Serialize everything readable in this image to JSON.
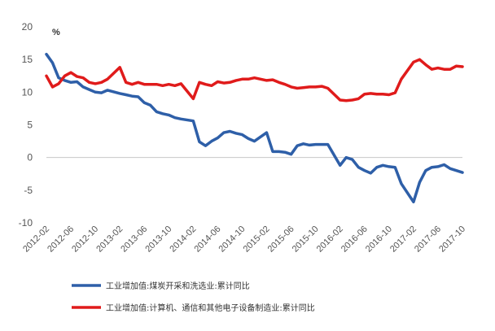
{
  "chart_data": {
    "type": "line",
    "unit_label": "%",
    "ylim": [
      -10,
      20
    ],
    "yticks": [
      20,
      15,
      10,
      5,
      0,
      -5,
      -10
    ],
    "x_tick_labels": [
      "2012-02",
      "2012-06",
      "2012-10",
      "2013-02",
      "2013-06",
      "2013-10",
      "2014-02",
      "2014-06",
      "2014-10",
      "2015-02",
      "2015-06",
      "2015-10",
      "2016-02",
      "2016-06",
      "2016-10",
      "2017-02",
      "2017-06",
      "2017-10"
    ],
    "x": [
      "2012-02",
      "2012-03",
      "2012-04",
      "2012-05",
      "2012-06",
      "2012-07",
      "2012-08",
      "2012-09",
      "2012-10",
      "2012-11",
      "2012-12",
      "2013-02",
      "2013-03",
      "2013-04",
      "2013-05",
      "2013-06",
      "2013-07",
      "2013-08",
      "2013-09",
      "2013-10",
      "2013-11",
      "2013-12",
      "2014-02",
      "2014-03",
      "2014-04",
      "2014-05",
      "2014-06",
      "2014-07",
      "2014-08",
      "2014-09",
      "2014-10",
      "2014-11",
      "2014-12",
      "2015-02",
      "2015-03",
      "2015-04",
      "2015-05",
      "2015-06",
      "2015-07",
      "2015-08",
      "2015-09",
      "2015-10",
      "2015-11",
      "2015-12",
      "2016-02",
      "2016-03",
      "2016-04",
      "2016-05",
      "2016-06",
      "2016-07",
      "2016-08",
      "2016-09",
      "2016-10",
      "2016-11",
      "2016-12",
      "2017-02",
      "2017-03",
      "2017-04",
      "2017-05",
      "2017-06",
      "2017-07",
      "2017-08",
      "2017-09",
      "2017-10"
    ],
    "series": [
      {
        "name": "工业增加值:煤炭开采和洗选业:累计同比",
        "color": "#2e5fa8",
        "values": [
          15.8,
          14.5,
          12.2,
          11.8,
          11.5,
          11.6,
          10.8,
          10.4,
          10.0,
          9.9,
          10.3,
          9.8,
          9.6,
          9.4,
          9.3,
          8.4,
          8.0,
          7.0,
          6.7,
          6.5,
          6.1,
          5.9,
          5.6,
          2.4,
          1.8,
          2.5,
          3.0,
          3.8,
          4.0,
          3.7,
          3.5,
          2.9,
          2.5,
          3.8,
          0.9,
          0.9,
          0.8,
          0.5,
          1.8,
          2.1,
          1.9,
          2.0,
          2.0,
          2.0,
          -1.2,
          0.0,
          -0.3,
          -1.5,
          -2.0,
          -2.4,
          -1.5,
          -1.2,
          -1.4,
          -1.5,
          -4.0,
          -6.8,
          -3.8,
          -2.0,
          -1.5,
          -1.4,
          -1.1,
          -1.7,
          -2.0,
          -2.3
        ]
      },
      {
        "name": "工业增加值:计算机、通信和其他电子设备制造业:累计同比",
        "color": "#e01b1b",
        "values": [
          12.5,
          10.8,
          11.3,
          12.5,
          13.0,
          12.4,
          12.2,
          11.5,
          11.3,
          11.5,
          12.0,
          13.8,
          11.5,
          11.2,
          11.5,
          11.2,
          11.2,
          11.2,
          11.0,
          11.2,
          11.0,
          11.3,
          9.0,
          11.5,
          11.2,
          11.0,
          11.6,
          11.4,
          11.5,
          11.8,
          12.0,
          12.0,
          12.2,
          11.8,
          11.9,
          11.5,
          11.2,
          10.8,
          10.6,
          10.7,
          10.8,
          10.8,
          10.9,
          10.6,
          8.8,
          8.7,
          8.8,
          9.0,
          9.7,
          9.8,
          9.7,
          9.7,
          9.6,
          9.9,
          12.0,
          14.6,
          15.0,
          14.2,
          13.5,
          13.7,
          13.5,
          13.5,
          14.0,
          13.9
        ]
      }
    ],
    "grid": false,
    "legend_position": "bottom-left"
  }
}
